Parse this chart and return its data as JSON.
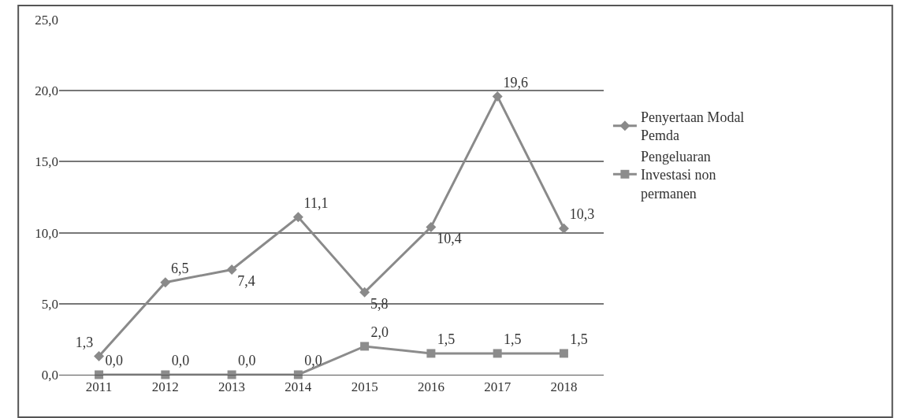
{
  "chart_data": {
    "type": "line",
    "categories": [
      "2011",
      "2012",
      "2013",
      "2014",
      "2015",
      "2016",
      "2017",
      "2018"
    ],
    "series": [
      {
        "name": "Penyertaan Modal Pemda",
        "color": "#8a8a8a",
        "marker": "diamond",
        "values": [
          1.3,
          6.5,
          7.4,
          11.1,
          5.8,
          10.4,
          19.6,
          10.3
        ],
        "value_labels": [
          "1,3",
          "6,5",
          "7,4",
          "11,1",
          "5,8",
          "10,4",
          "19,6",
          "10,3"
        ]
      },
      {
        "name": "Pengeluaran Investasi non permanen",
        "color": "#8c8c8c",
        "marker": "square",
        "values": [
          0.0,
          0.0,
          0.0,
          0.0,
          2.0,
          1.5,
          1.5,
          1.5
        ],
        "value_labels": [
          "0,0",
          "0,0",
          "0,0",
          "0,0",
          "2,0",
          "1,5",
          "1,5",
          "1,5"
        ]
      }
    ],
    "ylim": [
      0,
      25
    ],
    "yticks": [
      {
        "value": 0,
        "label": "0,0"
      },
      {
        "value": 5,
        "label": "5,0"
      },
      {
        "value": 10,
        "label": "10,0"
      },
      {
        "value": 15,
        "label": "15,0"
      },
      {
        "value": 20,
        "label": "20,0"
      },
      {
        "value": 25,
        "label": "25,0"
      }
    ],
    "grid": "y",
    "legend": "right"
  }
}
